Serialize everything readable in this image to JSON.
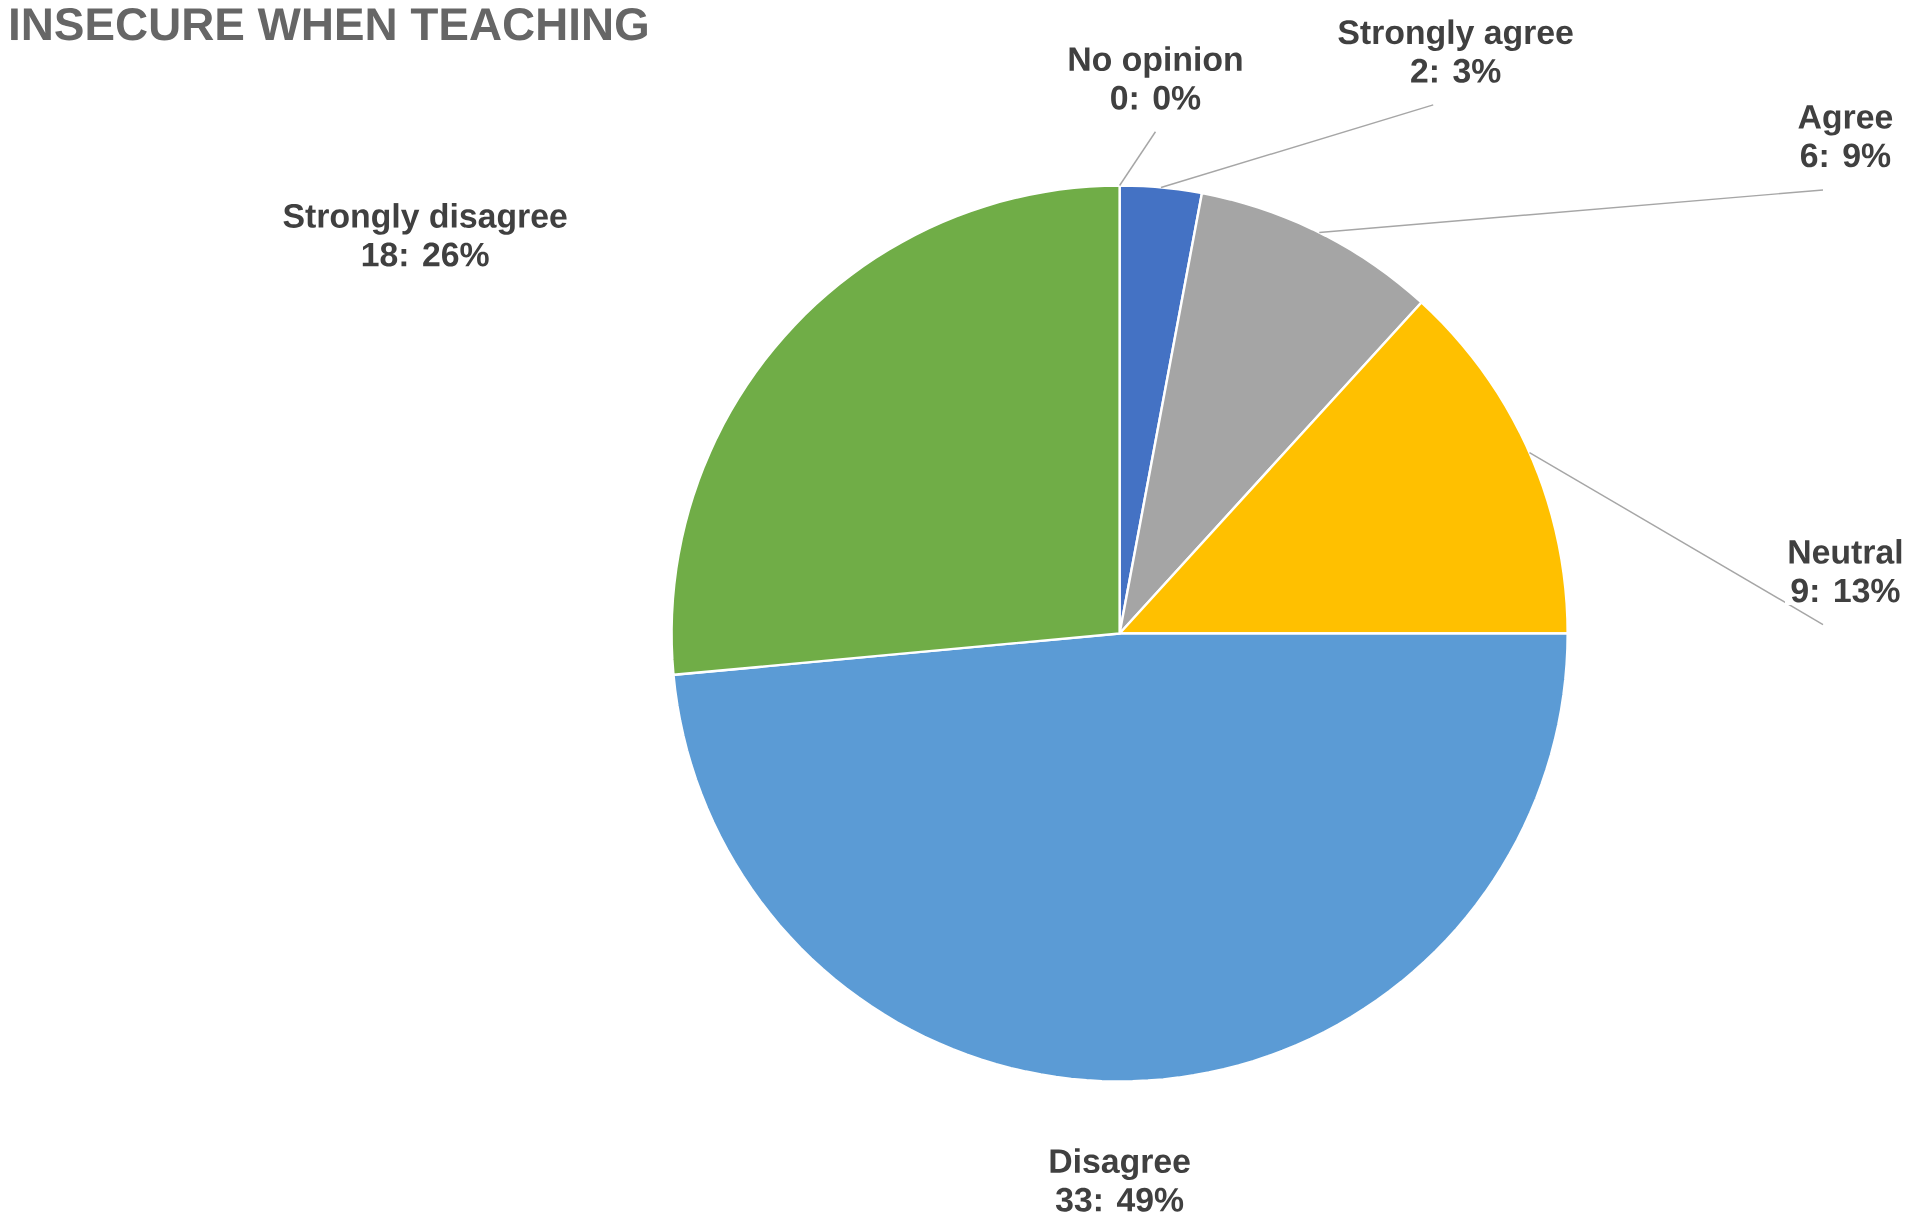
{
  "chart_data": {
    "type": "pie",
    "title": "INSECURE WHEN TEACHING",
    "categories": [
      "Strongly agree",
      "Agree",
      "Neutral",
      "Disagree",
      "Strongly disagree",
      "No opinion"
    ],
    "values": [
      2,
      6,
      9,
      33,
      18,
      0
    ],
    "value_labels": [
      "2: 3%",
      "6: 9%",
      "9: 13%",
      "33: 49%",
      "18: 26%",
      "0: 0%"
    ],
    "colors": [
      "#4472c4",
      "#a5a5a5",
      "#ffc000",
      "#5b9bd5",
      "#70ad47",
      "#264478"
    ]
  }
}
